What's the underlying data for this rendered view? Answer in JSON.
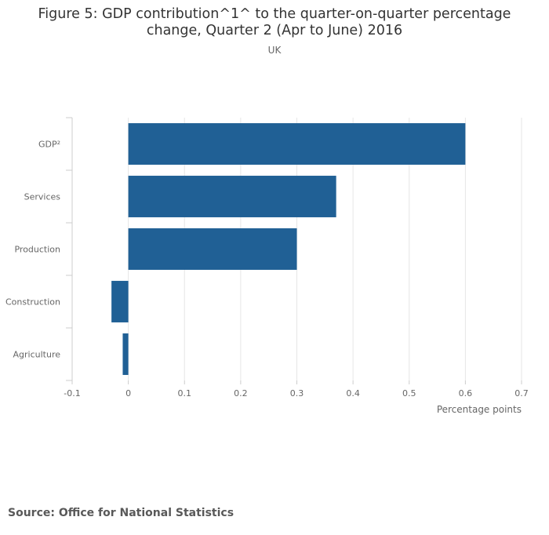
{
  "title_line1": "Figure 5: GDP contribution^1^ to the quarter-on-quarter percentage",
  "title_line2": "change, Quarter 2 (Apr to June) 2016",
  "subtitle": "UK",
  "source": "Source: Office for National Statistics",
  "colors": {
    "bar": "#206095",
    "grid": "#e6e6e6",
    "axis": "#cccccc"
  },
  "chart_data": {
    "type": "bar",
    "orientation": "horizontal",
    "categories": [
      "GDP²",
      "Services",
      "Production",
      "Construction",
      "Agriculture"
    ],
    "values": [
      0.6,
      0.37,
      0.3,
      -0.03,
      -0.01
    ],
    "xlabel": "Percentage points",
    "ylabel": "",
    "xlim": [
      -0.1,
      0.7
    ],
    "xticks": [
      -0.1,
      0,
      0.1,
      0.2,
      0.3,
      0.4,
      0.5,
      0.6,
      0.7
    ],
    "xtick_labels": [
      "-0.1",
      "0",
      "0.1",
      "0.2",
      "0.3",
      "0.4",
      "0.5",
      "0.6",
      "0.7"
    ],
    "grid": true,
    "legend": "none"
  }
}
